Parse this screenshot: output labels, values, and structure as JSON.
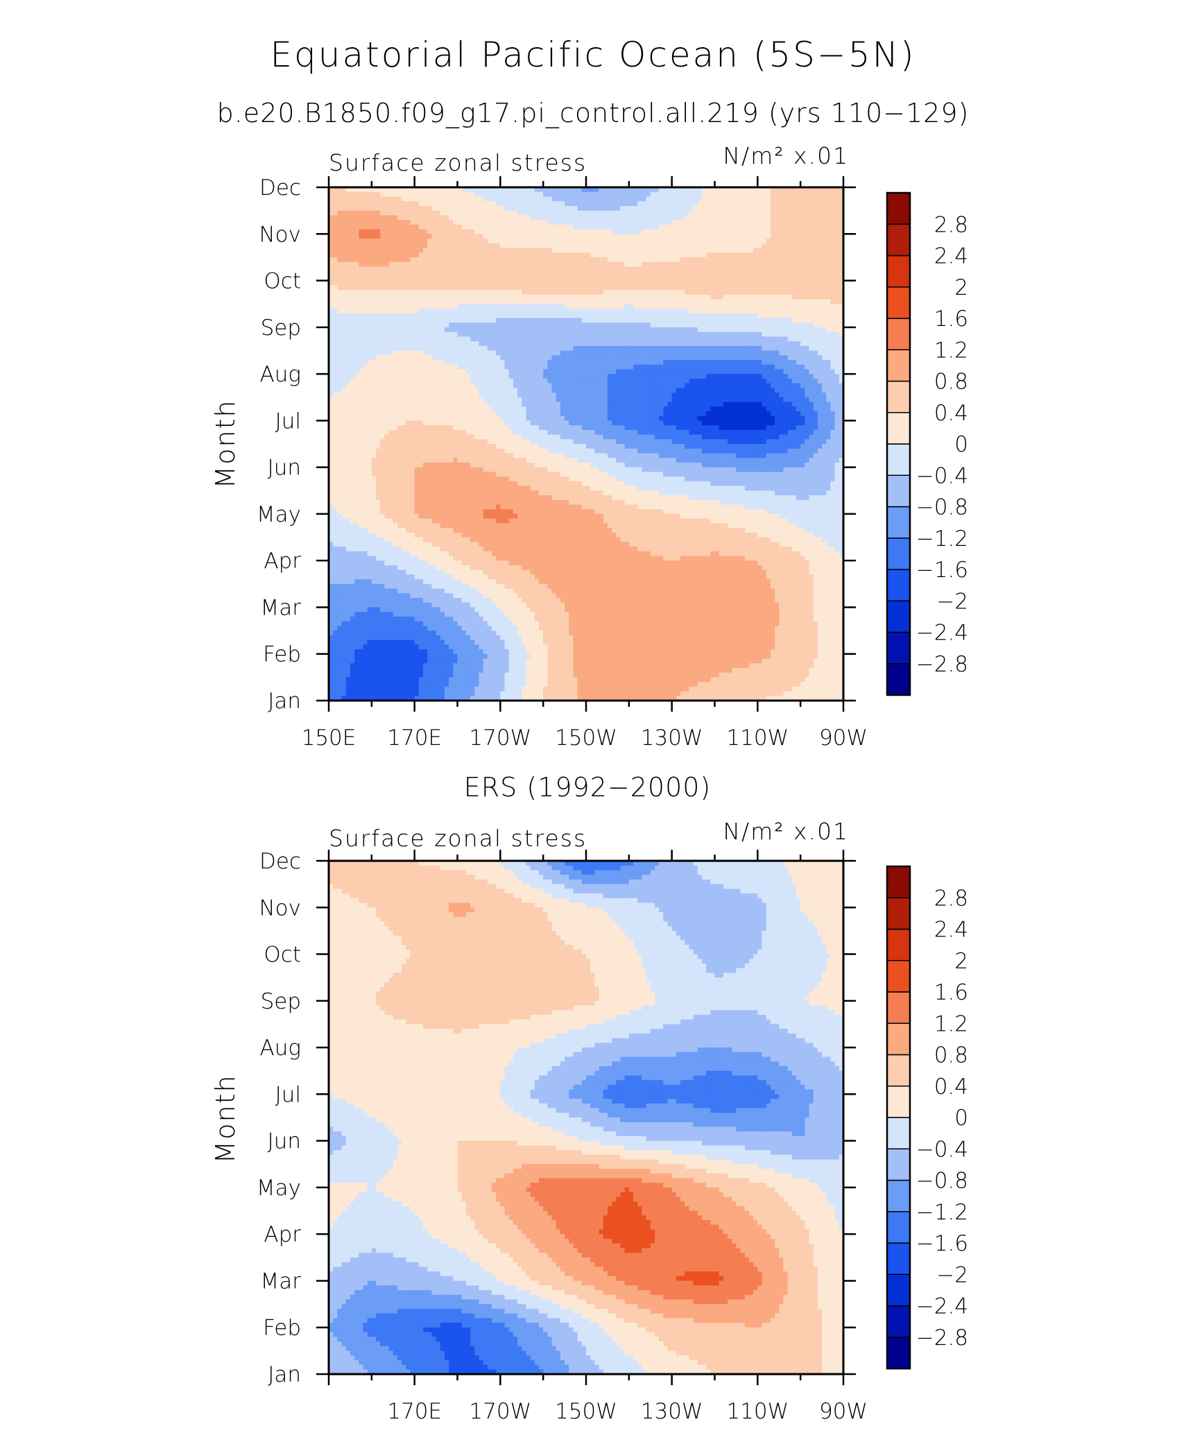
{
  "figure": {
    "title": "Equatorial Pacific Ocean (5S−5N)",
    "subtitle": "b.e20.B1850.f09_g17.pi_control.all.219 (yrs 110−129)"
  },
  "chart_data": [
    {
      "type": "heatmap",
      "title": "",
      "left_label": "Surface zonal stress",
      "units_label": "N/m² x.01",
      "xlabel": "",
      "ylabel": "Month",
      "x_ticks": [
        "150E",
        "170E",
        "170W",
        "150W",
        "130W",
        "110W",
        "90W"
      ],
      "y_ticks": [
        "Jan",
        "Feb",
        "Mar",
        "Apr",
        "May",
        "Jun",
        "Jul",
        "Aug",
        "Sep",
        "Oct",
        "Nov",
        "Dec"
      ],
      "x": [
        150,
        160,
        170,
        180,
        190,
        200,
        210,
        220,
        230,
        240,
        250,
        260,
        270
      ],
      "rows": [
        [
          -1.4,
          -2.0,
          -1.6,
          -1.0,
          -0.4,
          0.4,
          0.9,
          0.9,
          0.8,
          0.6,
          0.4,
          0.3,
          0.1
        ],
        [
          -1.3,
          -1.8,
          -1.8,
          -1.2,
          -0.6,
          0.3,
          1.0,
          1.1,
          1.1,
          1.0,
          0.9,
          0.6,
          0.1
        ],
        [
          -1.0,
          -1.2,
          -1.0,
          -0.6,
          0.0,
          0.6,
          1.0,
          1.1,
          1.0,
          1.0,
          1.0,
          0.6,
          0.0
        ],
        [
          -0.6,
          -0.5,
          -0.1,
          0.4,
          0.8,
          1.0,
          1.0,
          0.9,
          0.8,
          0.9,
          0.8,
          0.5,
          0.0
        ],
        [
          -0.1,
          0.3,
          0.8,
          1.1,
          1.3,
          1.1,
          0.9,
          0.6,
          0.4,
          0.3,
          0.1,
          -0.2,
          -0.4
        ],
        [
          0.3,
          0.4,
          0.8,
          0.9,
          0.7,
          0.4,
          0.1,
          -0.4,
          -0.6,
          -0.8,
          -0.9,
          -0.8,
          -0.3
        ],
        [
          0.2,
          0.3,
          0.4,
          0.3,
          0.0,
          -0.6,
          -1.0,
          -1.4,
          -1.7,
          -2.2,
          -2.3,
          -1.7,
          -0.6
        ],
        [
          -0.2,
          0.1,
          0.3,
          0.1,
          -0.3,
          -0.8,
          -1.1,
          -1.3,
          -1.5,
          -1.6,
          -1.6,
          -1.0,
          -0.3
        ],
        [
          -0.3,
          -0.2,
          -0.3,
          -0.5,
          -0.6,
          -0.7,
          -0.6,
          -0.5,
          -0.4,
          -0.3,
          -0.2,
          -0.1,
          0.1
        ],
        [
          0.5,
          0.6,
          0.6,
          0.6,
          0.7,
          0.8,
          0.8,
          0.6,
          0.6,
          0.8,
          0.6,
          0.7,
          0.7
        ],
        [
          1.1,
          1.3,
          1.0,
          0.5,
          0.3,
          0.2,
          0.1,
          0.0,
          0.1,
          0.1,
          0.3,
          0.6,
          0.7
        ],
        [
          0.4,
          0.3,
          0.1,
          0.0,
          -0.2,
          -0.5,
          -0.9,
          -0.7,
          -0.3,
          0.1,
          0.3,
          0.6,
          0.6
        ]
      ],
      "clim": [
        -3.0,
        3.0
      ]
    },
    {
      "type": "heatmap",
      "title": "ERS (1992−2000)",
      "left_label": "Surface zonal stress",
      "units_label": "N/m² x.01",
      "xlabel": "",
      "ylabel": "Month",
      "x_ticks": [
        "170E",
        "170W",
        "150W",
        "130W",
        "110W",
        "90W"
      ],
      "y_ticks": [
        "Jan",
        "Feb",
        "Mar",
        "Apr",
        "May",
        "Jun",
        "Jul",
        "Aug",
        "Sep",
        "Oct",
        "Nov",
        "Dec"
      ],
      "x": [
        150,
        160,
        170,
        180,
        190,
        200,
        210,
        220,
        230,
        240,
        250,
        260,
        270
      ],
      "rows": [
        [
          -0.4,
          -0.8,
          -1.2,
          -1.7,
          -1.6,
          -1.2,
          -0.6,
          -0.2,
          0.2,
          0.4,
          0.6,
          0.5,
          0.3
        ],
        [
          -0.8,
          -1.3,
          -1.6,
          -1.7,
          -1.3,
          -0.8,
          -0.2,
          0.3,
          0.6,
          0.7,
          0.8,
          0.6,
          0.2
        ],
        [
          -0.5,
          -0.8,
          -0.6,
          -0.4,
          0.0,
          0.5,
          0.9,
          1.3,
          1.6,
          1.7,
          1.3,
          0.6,
          0.1
        ],
        [
          0.0,
          -0.2,
          -0.1,
          0.2,
          0.6,
          1.0,
          1.5,
          1.8,
          1.5,
          1.3,
          0.9,
          0.5,
          0.0
        ],
        [
          0.1,
          0.0,
          0.1,
          0.4,
          0.9,
          1.4,
          1.5,
          1.6,
          1.2,
          0.8,
          0.5,
          0.2,
          -0.2
        ],
        [
          -0.6,
          -0.2,
          0.1,
          0.4,
          0.4,
          0.3,
          0.0,
          -0.3,
          -0.4,
          -0.5,
          -0.6,
          -0.8,
          -0.5
        ],
        [
          0.0,
          0.2,
          0.3,
          0.2,
          0.0,
          -0.6,
          -1.0,
          -1.6,
          -1.3,
          -1.6,
          -1.5,
          -0.9,
          -0.6
        ],
        [
          0.1,
          0.3,
          0.3,
          0.3,
          0.1,
          -0.1,
          -0.4,
          -0.6,
          -0.7,
          -0.8,
          -0.7,
          -0.5,
          -0.2
        ],
        [
          0.2,
          0.4,
          0.5,
          0.6,
          0.7,
          0.6,
          0.5,
          0.2,
          -0.1,
          -0.3,
          -0.3,
          0.0,
          0.1
        ],
        [
          0.2,
          0.3,
          0.4,
          0.4,
          0.6,
          0.5,
          0.4,
          0.1,
          -0.3,
          -0.5,
          -0.4,
          -0.2,
          0.1
        ],
        [
          0.3,
          0.4,
          0.5,
          0.9,
          0.7,
          0.4,
          0.1,
          -0.2,
          -0.5,
          -0.6,
          -0.5,
          0.0,
          0.2
        ],
        [
          0.5,
          0.6,
          0.4,
          0.3,
          0.0,
          -0.8,
          -1.7,
          -1.3,
          -0.6,
          -0.2,
          -0.1,
          0.1,
          0.3
        ]
      ],
      "clim": [
        -3.0,
        3.0
      ]
    }
  ],
  "colorbar": {
    "levels": [
      -3.2,
      -2.8,
      -2.4,
      -2.0,
      -1.6,
      -1.2,
      -0.8,
      -0.4,
      0,
      0.4,
      0.8,
      1.2,
      1.6,
      2.0,
      2.4,
      2.8,
      3.2
    ],
    "tick_labels": [
      "−2.8",
      "−2.4",
      "−2",
      "−1.6",
      "−1.2",
      "−0.8",
      "−0.4",
      "0",
      "0.4",
      "0.8",
      "1.2",
      "1.6",
      "2",
      "2.4",
      "2.8"
    ],
    "colors": [
      "#00008f",
      "#0013b0",
      "#0331d5",
      "#1b53ee",
      "#3d79f5",
      "#6b9cf6",
      "#a3bff8",
      "#d4e5fb",
      "#fde8d6",
      "#fccdae",
      "#faa981",
      "#f57d52",
      "#eb5020",
      "#d73410",
      "#b01d08",
      "#8b0a02"
    ]
  }
}
